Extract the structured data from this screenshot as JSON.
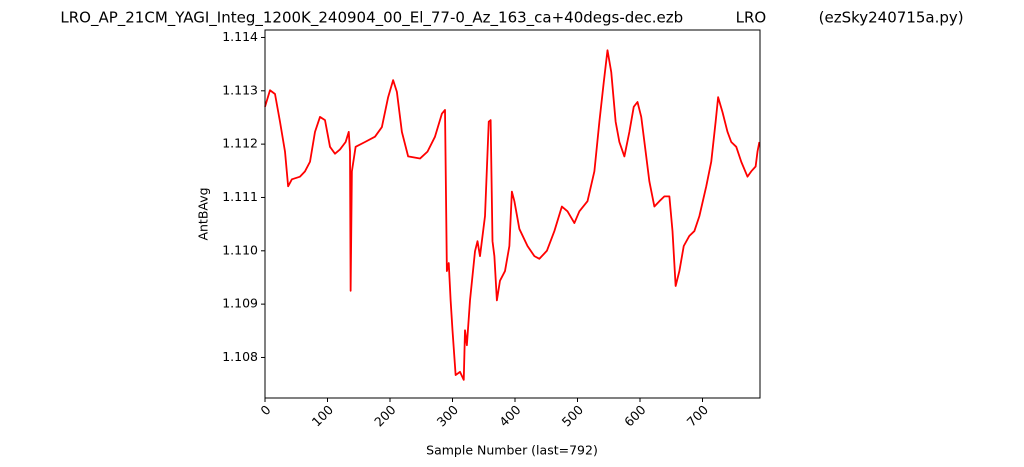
{
  "chart_data": {
    "type": "line",
    "title": "LRO_AP_21CM_YAGI_Integ_1200K_240904_00_El_77-0_Az_163_ca+40degs-dec.ezb           LRO           (ezSky240715a.py)",
    "x_label": "Sample Number (last=792)",
    "y_label": "AntBAvg",
    "color": "#ff0000",
    "x": [
      0,
      8,
      16,
      24,
      32,
      37,
      43,
      56,
      64,
      72,
      80,
      88,
      96,
      104,
      112,
      120,
      129,
      134,
      136,
      137,
      139,
      145,
      160,
      176,
      187,
      197,
      205,
      211,
      219,
      229,
      248,
      260,
      272,
      283,
      288,
      291,
      294,
      297,
      300,
      305,
      312,
      318,
      320,
      323,
      328,
      336,
      340,
      344,
      352,
      358,
      361,
      364,
      367,
      371,
      376,
      384,
      391,
      395,
      399,
      407,
      420,
      431,
      439,
      451,
      463,
      475,
      484,
      495,
      503,
      516,
      527,
      535,
      542,
      548,
      554,
      561,
      567,
      575,
      583,
      590,
      596,
      602,
      609,
      615,
      623,
      631,
      639,
      647,
      652,
      657,
      663,
      670,
      679,
      687,
      695,
      706,
      714,
      721,
      725,
      732,
      740,
      746,
      754,
      762,
      772,
      778,
      785,
      788,
      791
    ],
    "values": [
      1.1127,
      1.11301,
      1.11294,
      1.11242,
      1.11186,
      1.11121,
      1.11134,
      1.11139,
      1.11149,
      1.11167,
      1.11223,
      1.11251,
      1.11245,
      1.11195,
      1.11182,
      1.1119,
      1.11204,
      1.11223,
      1.11186,
      1.10925,
      1.11149,
      1.11195,
      1.11204,
      1.11214,
      1.11232,
      1.11288,
      1.1132,
      1.11298,
      1.11223,
      1.11177,
      1.11173,
      1.11186,
      1.11214,
      1.11257,
      1.11264,
      1.10962,
      1.10977,
      1.10907,
      1.10851,
      1.10767,
      1.10773,
      1.10758,
      1.10851,
      1.10823,
      1.10907,
      1.10999,
      1.11018,
      1.1099,
      1.11065,
      1.11242,
      1.11245,
      1.11018,
      1.1099,
      1.10907,
      1.10944,
      1.10962,
      1.11009,
      1.11111,
      1.11093,
      1.11041,
      1.11009,
      1.1099,
      1.10985,
      1.11,
      1.11037,
      1.11083,
      1.11074,
      1.11052,
      1.11074,
      1.11093,
      1.11149,
      1.11242,
      1.11316,
      1.11376,
      1.11335,
      1.11242,
      1.11204,
      1.11177,
      1.11223,
      1.1127,
      1.11279,
      1.11251,
      1.11186,
      1.1113,
      1.11083,
      1.11093,
      1.11102,
      1.11102,
      1.11037,
      1.10934,
      1.10962,
      1.11009,
      1.11028,
      1.11037,
      1.11065,
      1.11121,
      1.11167,
      1.11242,
      1.11288,
      1.1126,
      1.11223,
      1.11204,
      1.11195,
      1.11167,
      1.11139,
      1.11149,
      1.11158,
      1.11186,
      1.11204
    ],
    "xlim": [
      0,
      792
    ],
    "xticks": [
      0,
      100,
      200,
      300,
      400,
      500,
      600,
      700
    ],
    "ylim": [
      1.10724,
      1.11414
    ],
    "yticks": [
      1.108,
      1.109,
      {
        "value": 1.11,
        "label": "1.110"
      },
      1.111,
      1.112,
      1.113,
      1.114
    ]
  }
}
